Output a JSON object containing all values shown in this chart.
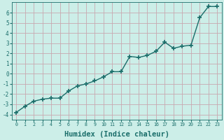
{
  "x": [
    0,
    1,
    2,
    3,
    4,
    5,
    6,
    7,
    8,
    9,
    10,
    11,
    12,
    13,
    14,
    15,
    16,
    17,
    18,
    19,
    20,
    21,
    22,
    23
  ],
  "y": [
    -3.8,
    -3.2,
    -2.7,
    -2.5,
    -2.4,
    -2.4,
    -1.7,
    -1.2,
    -1.0,
    -0.7,
    -0.3,
    0.2,
    0.2,
    1.7,
    1.6,
    1.8,
    2.2,
    3.1,
    2.5,
    2.7,
    2.8,
    5.5,
    6.6,
    6.6
  ],
  "line_color": "#1a6e6a",
  "marker": "+",
  "markersize": 4,
  "linewidth": 1.0,
  "xlabel": "Humidex (Indice chaleur)",
  "xlabel_fontsize": 7.5,
  "bg_color": "#cceee8",
  "grid_color": "#c8a8b0",
  "tick_color": "#1a6e6a",
  "label_color": "#1a6e6a",
  "xlim": [
    -0.5,
    23.5
  ],
  "ylim": [
    -4.5,
    7.0
  ],
  "yticks": [
    -4,
    -3,
    -2,
    -1,
    0,
    1,
    2,
    3,
    4,
    5,
    6
  ],
  "xticks": [
    0,
    1,
    2,
    3,
    4,
    5,
    6,
    7,
    8,
    9,
    10,
    11,
    12,
    13,
    14,
    15,
    16,
    17,
    18,
    19,
    20,
    21,
    22,
    23
  ]
}
